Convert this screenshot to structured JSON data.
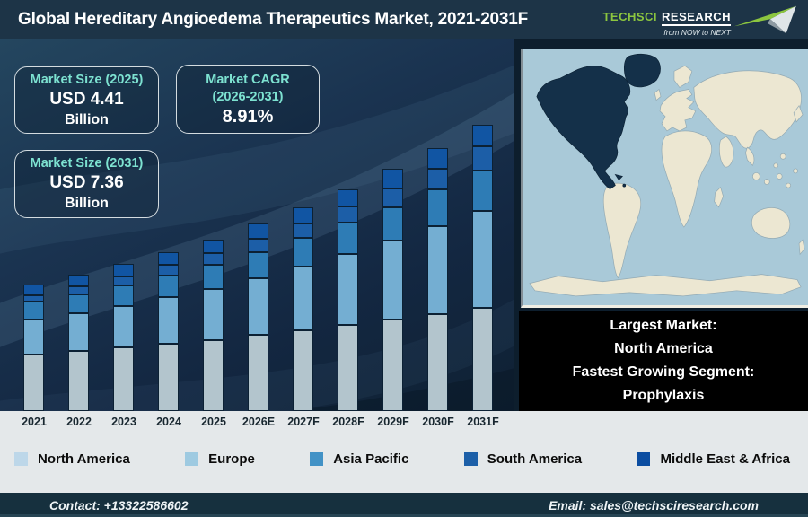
{
  "header": {
    "title": "Global Hereditary Angioedema Therapeutics Market, 2021-2031F",
    "logo": {
      "brand_primary": "TechSci",
      "brand_secondary": "Research",
      "tagline": "from NOW to NEXT",
      "brand_color": "#8cc63f"
    }
  },
  "stats": [
    {
      "label": "Market Size (2025)",
      "value": "USD 4.41",
      "unit": "Billion"
    },
    {
      "label": "Market CAGR",
      "label2": "(2026-2031)",
      "value": "8.91%"
    },
    {
      "label": "Market Size (2031)",
      "value": "USD 7.36",
      "unit": "Billion"
    }
  ],
  "chart_data": {
    "type": "bar",
    "stacked": true,
    "title": "Global Hereditary Angioedema Therapeutics Market, 2021-2031F",
    "unit": "USD Billion",
    "grid": false,
    "legend_position": "bottom",
    "ylim": [
      0,
      7.5
    ],
    "categories": [
      "2021",
      "2022",
      "2023",
      "2024",
      "2025",
      "2026E",
      "2027F",
      "2028F",
      "2029F",
      "2030F",
      "2031F"
    ],
    "totals": [
      3.25,
      3.5,
      3.78,
      4.08,
      4.41,
      4.81,
      5.24,
      5.7,
      6.21,
      6.76,
      7.36
    ],
    "series": [
      {
        "name": "North America",
        "bar_color": "#b3c5cd",
        "legend_color": "#bdd7e9",
        "values": [
          1.46,
          1.54,
          1.63,
          1.73,
          1.83,
          1.95,
          2.08,
          2.21,
          2.35,
          2.49,
          2.65
        ]
      },
      {
        "name": "Europe",
        "bar_color": "#74aed2",
        "legend_color": "#9ecae1",
        "values": [
          0.88,
          0.97,
          1.07,
          1.19,
          1.31,
          1.47,
          1.63,
          1.82,
          2.02,
          2.25,
          2.5
        ]
      },
      {
        "name": "Asia Pacific",
        "bar_color": "#2e7cb5",
        "legend_color": "#4292c6",
        "values": [
          0.46,
          0.49,
          0.53,
          0.57,
          0.62,
          0.67,
          0.73,
          0.8,
          0.87,
          0.95,
          1.03
        ]
      },
      {
        "name": "South America",
        "bar_color": "#1c5ea7",
        "legend_color": "#1c5fa8",
        "values": [
          0.18,
          0.2,
          0.23,
          0.26,
          0.29,
          0.33,
          0.38,
          0.43,
          0.48,
          0.54,
          0.61
        ]
      },
      {
        "name": "Middle East & Africa",
        "bar_color": "#1155a3",
        "legend_color": "#0b4da1",
        "values": [
          0.27,
          0.3,
          0.32,
          0.33,
          0.36,
          0.39,
          0.42,
          0.44,
          0.49,
          0.53,
          0.57
        ]
      }
    ]
  },
  "map_callout": {
    "lines": [
      "Largest Market:",
      "North America",
      "Fastest Growing Segment:",
      "Prophylaxis"
    ],
    "highlight_region": "North America"
  },
  "map_colors": {
    "ocean": "#a9c9d8",
    "land": "#ece7d2",
    "highlight": "#143049"
  },
  "footer": {
    "contact": "Contact: +13322586602",
    "email": "Email: sales@techsciresearch.com"
  }
}
